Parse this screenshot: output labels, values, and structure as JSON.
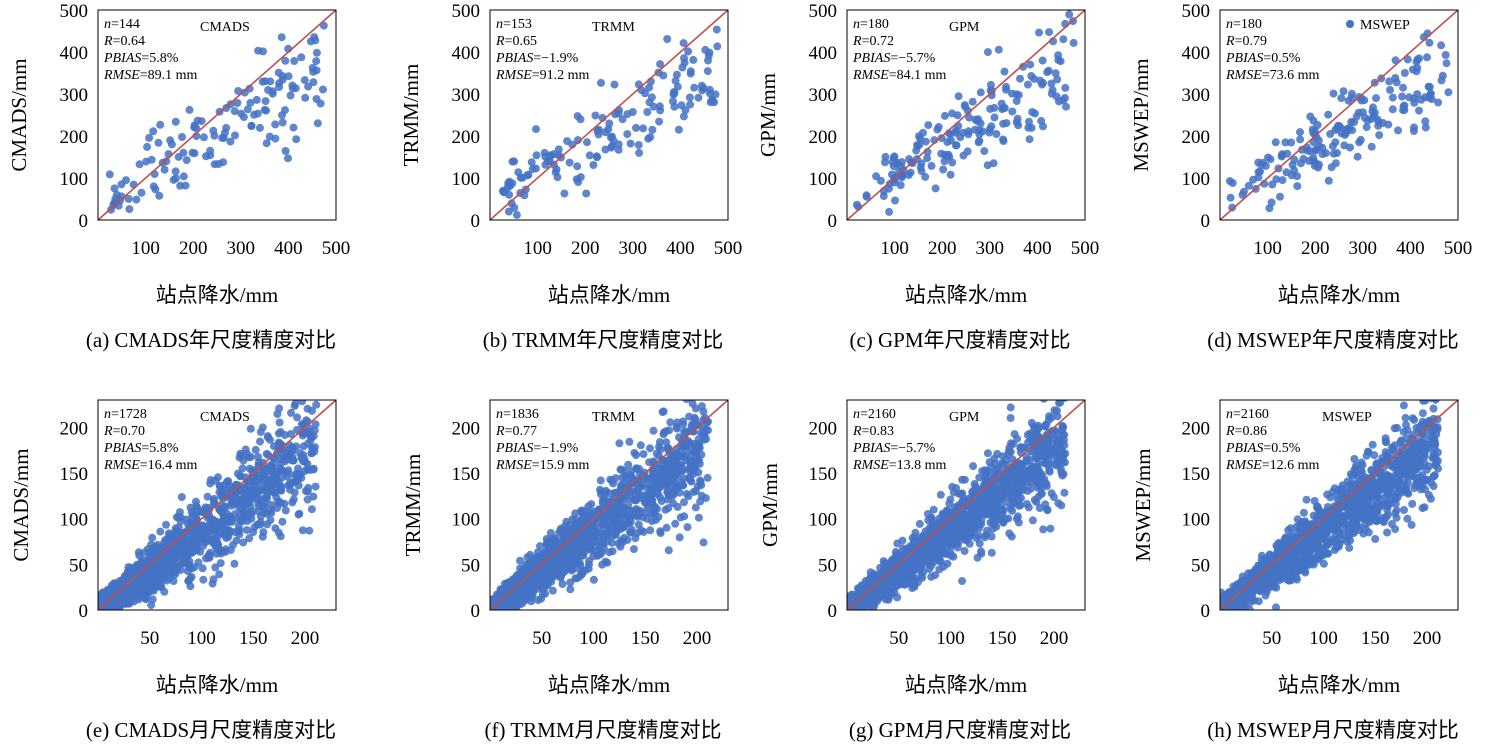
{
  "figure": {
    "xlabel_common": "站点降水/mm",
    "colors": {
      "points": "#4472c4",
      "reference_line": "#c0504d",
      "axes": "#000000"
    }
  },
  "chart_data": [
    {
      "type": "scatter",
      "panel_id": "a",
      "caption": "(a) CMADS年尺度精度对比",
      "series": [
        {
          "name": "CMADS",
          "n": 144
        }
      ],
      "xlabel": "站点降水/mm",
      "ylabel": "CMADS/mm",
      "xlim": [
        0,
        500
      ],
      "ylim": [
        0,
        500
      ],
      "xticks": [
        100,
        200,
        300,
        400,
        500
      ],
      "yticks": [
        0,
        100,
        200,
        300,
        400,
        500
      ],
      "stats": {
        "n": "144",
        "R": "0.64",
        "PBIAS": "5.8%",
        "RMSE": "89.1 mm"
      },
      "reference_line": "1:1",
      "legend": "top-center"
    },
    {
      "type": "scatter",
      "panel_id": "b",
      "caption": "(b) TRMM年尺度精度对比",
      "series": [
        {
          "name": "TRMM",
          "n": 153
        }
      ],
      "xlabel": "站点降水/mm",
      "ylabel": "TRMM/mm",
      "xlim": [
        0,
        500
      ],
      "ylim": [
        0,
        500
      ],
      "xticks": [
        100,
        200,
        300,
        400,
        500
      ],
      "yticks": [
        0,
        100,
        200,
        300,
        400,
        500
      ],
      "stats": {
        "n": "153",
        "R": "0.65",
        "PBIAS": "−1.9%",
        "RMSE": "91.2 mm"
      },
      "reference_line": "1:1",
      "legend": "top-center"
    },
    {
      "type": "scatter",
      "panel_id": "c",
      "caption": "(c) GPM年尺度精度对比",
      "series": [
        {
          "name": "GPM",
          "n": 180
        }
      ],
      "xlabel": "站点降水/mm",
      "ylabel": "GPM/mm",
      "xlim": [
        0,
        500
      ],
      "ylim": [
        0,
        500
      ],
      "xticks": [
        100,
        200,
        300,
        400,
        500
      ],
      "yticks": [
        0,
        100,
        200,
        300,
        400,
        500
      ],
      "stats": {
        "n": "180",
        "R": "0.72",
        "PBIAS": "−5.7%",
        "RMSE": "84.1 mm"
      },
      "reference_line": "1:1",
      "legend": "top-center"
    },
    {
      "type": "scatter",
      "panel_id": "d",
      "caption": "(d) MSWEP年尺度精度对比",
      "series": [
        {
          "name": "MSWEP",
          "n": 180
        }
      ],
      "xlabel": "站点降水/mm",
      "ylabel": "MSWEP/mm",
      "xlim": [
        0,
        500
      ],
      "ylim": [
        0,
        500
      ],
      "xticks": [
        100,
        200,
        300,
        400,
        500
      ],
      "yticks": [
        0,
        100,
        200,
        300,
        400,
        500
      ],
      "stats": {
        "n": "180",
        "R": "0.79",
        "PBIAS": "0.5%",
        "RMSE": "73.6 mm"
      },
      "reference_line": "1:1",
      "legend": "top-right"
    },
    {
      "type": "scatter",
      "panel_id": "e",
      "caption": "(e) CMADS月尺度精度对比",
      "series": [
        {
          "name": "CMADS",
          "n": 1728
        }
      ],
      "xlabel": "站点降水/mm",
      "ylabel": "CMADS/mm",
      "xlim": [
        0,
        230
      ],
      "ylim": [
        0,
        230
      ],
      "xticks": [
        50,
        100,
        150,
        200
      ],
      "yticks": [
        0,
        50,
        100,
        150,
        200
      ],
      "stats": {
        "n": "1728",
        "R": "0.70",
        "PBIAS": "5.8%",
        "RMSE": "16.4 mm"
      },
      "reference_line": "1:1",
      "legend": "top-center"
    },
    {
      "type": "scatter",
      "panel_id": "f",
      "caption": "(f) TRMM月尺度精度对比",
      "series": [
        {
          "name": "TRMM",
          "n": 1836
        }
      ],
      "xlabel": "站点降水/mm",
      "ylabel": "TRMM/mm",
      "xlim": [
        0,
        230
      ],
      "ylim": [
        0,
        230
      ],
      "xticks": [
        50,
        100,
        150,
        200
      ],
      "yticks": [
        0,
        50,
        100,
        150,
        200
      ],
      "stats": {
        "n": "1836",
        "R": "0.77",
        "PBIAS": "−1.9%",
        "RMSE": "15.9 mm"
      },
      "reference_line": "1:1",
      "legend": "top-center"
    },
    {
      "type": "scatter",
      "panel_id": "g",
      "caption": "(g) GPM月尺度精度对比",
      "series": [
        {
          "name": "GPM",
          "n": 2160
        }
      ],
      "xlabel": "站点降水/mm",
      "ylabel": "GPM/mm",
      "xlim": [
        0,
        230
      ],
      "ylim": [
        0,
        230
      ],
      "xticks": [
        50,
        100,
        150,
        200
      ],
      "yticks": [
        0,
        50,
        100,
        150,
        200
      ],
      "stats": {
        "n": "2160",
        "R": "0.83",
        "PBIAS": "−5.7%",
        "RMSE": "13.8 mm"
      },
      "reference_line": "1:1",
      "legend": "top-center"
    },
    {
      "type": "scatter",
      "panel_id": "h",
      "caption": "(h) MSWEP月尺度精度对比",
      "series": [
        {
          "name": "MSWEP",
          "n": 2160
        }
      ],
      "xlabel": "站点降水/mm",
      "ylabel": "MSWEP/mm",
      "xlim": [
        0,
        230
      ],
      "ylim": [
        0,
        230
      ],
      "xticks": [
        50,
        100,
        150,
        200
      ],
      "yticks": [
        0,
        50,
        100,
        150,
        200
      ],
      "stats": {
        "n": "2160",
        "R": "0.86",
        "PBIAS": "0.5%",
        "RMSE": "12.6 mm"
      },
      "reference_line": "1:1",
      "legend": "top-center"
    }
  ]
}
